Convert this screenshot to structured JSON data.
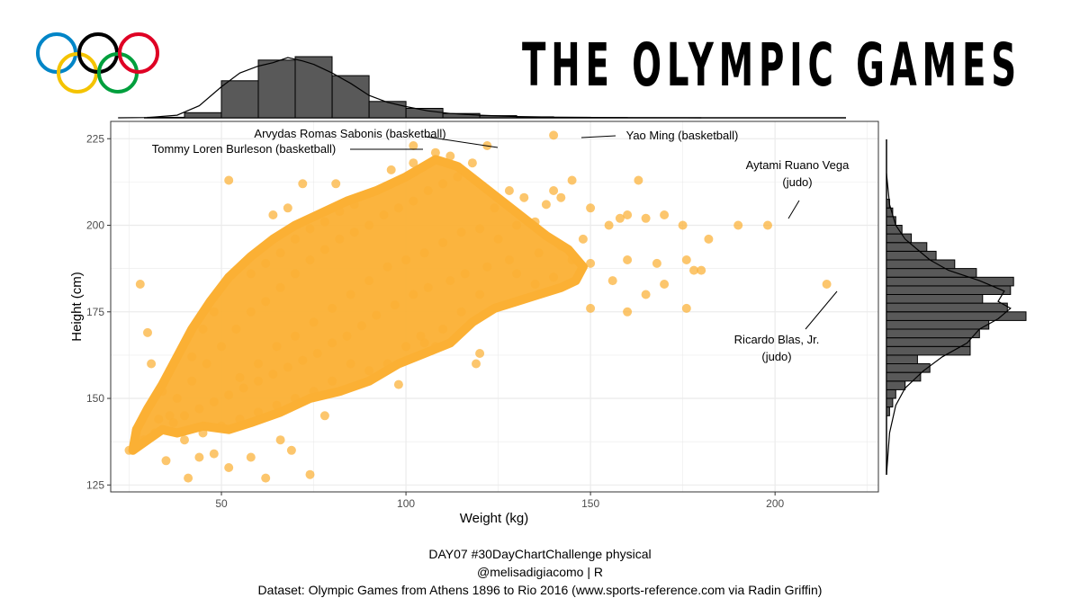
{
  "title": "THE OLYMPIC GAMES",
  "caption": {
    "line1": "DAY07 #30DayChartChallenge physical",
    "line2": "@melisadigiacomo | R",
    "line3": "Dataset: Olympic Games from Athens 1896 to Rio 2016 (www.sports-reference.com via Radin Griffin)"
  },
  "logo": {
    "icon": "olympic-rings-icon",
    "colors": [
      "#0085C7",
      "#F4C300",
      "#000000",
      "#009F3D",
      "#DF0024"
    ]
  },
  "colors": {
    "point": "#FBB034",
    "hist_fill": "#595959",
    "grid": "#EBEBEB",
    "panel_border": "#333333"
  },
  "chart_data": {
    "type": "scatter",
    "xlabel": "Weight (kg)",
    "ylabel": "Height (cm)",
    "xlim": [
      20,
      228
    ],
    "ylim": [
      123,
      230
    ],
    "xticks": [
      50,
      100,
      150,
      200
    ],
    "yticks": [
      125,
      150,
      175,
      200,
      225
    ],
    "grid": true,
    "point_color": "#FBB034",
    "points": [
      [
        28,
        183
      ],
      [
        30,
        169
      ],
      [
        25,
        135
      ],
      [
        27,
        141
      ],
      [
        29,
        138
      ],
      [
        32,
        140
      ],
      [
        31,
        160
      ],
      [
        33,
        144
      ],
      [
        35,
        132
      ],
      [
        36,
        145
      ],
      [
        41,
        127
      ],
      [
        44,
        133
      ],
      [
        48,
        134
      ],
      [
        52,
        130
      ],
      [
        58,
        133
      ],
      [
        62,
        127
      ],
      [
        66,
        138
      ],
      [
        69,
        135
      ],
      [
        74,
        128
      ],
      [
        78,
        145
      ],
      [
        55,
        156
      ],
      [
        60,
        160
      ],
      [
        65,
        165
      ],
      [
        70,
        168
      ],
      [
        75,
        172
      ],
      [
        80,
        176
      ],
      [
        85,
        180
      ],
      [
        90,
        184
      ],
      [
        95,
        188
      ],
      [
        100,
        190
      ],
      [
        105,
        192
      ],
      [
        110,
        195
      ],
      [
        115,
        198
      ],
      [
        120,
        199
      ],
      [
        125,
        196
      ],
      [
        130,
        200
      ],
      [
        135,
        201
      ],
      [
        140,
        210
      ],
      [
        145,
        213
      ],
      [
        150,
        205
      ],
      [
        155,
        200
      ],
      [
        158,
        202
      ],
      [
        160,
        203
      ],
      [
        163,
        213
      ],
      [
        165,
        202
      ],
      [
        170,
        203
      ],
      [
        175,
        200
      ],
      [
        182,
        196
      ],
      [
        190,
        200
      ],
      [
        150,
        189
      ],
      [
        160,
        190
      ],
      [
        168,
        189
      ],
      [
        176,
        190
      ],
      [
        178,
        187
      ],
      [
        180,
        187
      ],
      [
        170,
        183
      ],
      [
        165,
        180
      ],
      [
        150,
        176
      ],
      [
        160,
        175
      ],
      [
        176,
        176
      ],
      [
        156,
        184
      ],
      [
        145,
        190
      ],
      [
        140,
        185
      ],
      [
        135,
        183
      ],
      [
        130,
        186
      ],
      [
        120,
        180
      ],
      [
        115,
        175
      ],
      [
        110,
        170
      ],
      [
        105,
        166
      ],
      [
        100,
        165
      ],
      [
        95,
        160
      ],
      [
        120,
        163
      ],
      [
        119,
        160
      ],
      [
        108,
        165
      ],
      [
        104,
        168
      ],
      [
        98,
        154
      ],
      [
        90,
        158
      ],
      [
        85,
        160
      ],
      [
        80,
        155
      ],
      [
        75,
        152
      ],
      [
        70,
        150
      ],
      [
        65,
        148
      ],
      [
        60,
        146
      ],
      [
        55,
        144
      ],
      [
        50,
        142
      ],
      [
        45,
        140
      ],
      [
        40,
        138
      ],
      [
        38,
        150
      ],
      [
        42,
        155
      ],
      [
        46,
        160
      ],
      [
        50,
        165
      ],
      [
        54,
        170
      ],
      [
        58,
        175
      ],
      [
        62,
        178
      ],
      [
        66,
        182
      ],
      [
        70,
        186
      ],
      [
        74,
        190
      ],
      [
        78,
        193
      ],
      [
        82,
        196
      ],
      [
        86,
        198
      ],
      [
        90,
        200
      ],
      [
        94,
        203
      ],
      [
        98,
        205
      ],
      [
        102,
        207
      ],
      [
        106,
        210
      ],
      [
        110,
        212
      ],
      [
        114,
        214
      ],
      [
        48,
        175
      ],
      [
        45,
        170
      ],
      [
        42,
        162
      ],
      [
        36,
        158
      ],
      [
        34,
        152
      ],
      [
        58,
        186
      ],
      [
        62,
        189
      ],
      [
        66,
        192
      ],
      [
        70,
        196
      ],
      [
        74,
        199
      ],
      [
        78,
        201
      ],
      [
        82,
        204
      ],
      [
        86,
        206
      ],
      [
        64,
        203
      ],
      [
        68,
        205
      ],
      [
        52,
        213
      ],
      [
        72,
        212
      ],
      [
        81,
        212
      ],
      [
        96,
        216
      ],
      [
        102,
        218
      ],
      [
        108,
        221
      ],
      [
        112,
        220
      ],
      [
        118,
        218
      ],
      [
        132,
        208
      ],
      [
        138,
        206
      ],
      [
        142,
        208
      ],
      [
        128,
        210
      ],
      [
        124,
        205
      ],
      [
        148,
        196
      ],
      [
        142,
        194
      ],
      [
        136,
        192
      ],
      [
        128,
        190
      ],
      [
        122,
        188
      ],
      [
        116,
        186
      ],
      [
        112,
        184
      ],
      [
        106,
        182
      ],
      [
        102,
        180
      ],
      [
        97,
        177
      ],
      [
        92,
        174
      ],
      [
        88,
        171
      ],
      [
        84,
        168
      ],
      [
        80,
        166
      ],
      [
        76,
        163
      ],
      [
        72,
        161
      ],
      [
        68,
        159
      ],
      [
        64,
        157
      ],
      [
        60,
        155
      ],
      [
        56,
        153
      ],
      [
        52,
        151
      ],
      [
        48,
        149
      ],
      [
        44,
        147
      ],
      [
        40,
        145
      ],
      [
        37,
        143
      ],
      [
        102,
        223
      ],
      [
        122,
        223
      ],
      [
        140,
        226
      ],
      [
        198,
        200
      ],
      [
        214,
        183
      ]
    ],
    "top_histogram": {
      "axis": "Weight (kg)",
      "bin_width": 10,
      "bins": [
        [
          30,
          0.6
        ],
        [
          40,
          6
        ],
        [
          50,
          43
        ],
        [
          60,
          67
        ],
        [
          70,
          71
        ],
        [
          80,
          49
        ],
        [
          90,
          19
        ],
        [
          100,
          11
        ],
        [
          110,
          5
        ],
        [
          120,
          2.5
        ],
        [
          130,
          1.2
        ],
        [
          140,
          0.6
        ],
        [
          150,
          0.3
        ]
      ]
    },
    "right_histogram": {
      "axis": "Height (cm)",
      "bin_width": 2.5,
      "bins": [
        [
          145,
          1
        ],
        [
          147.5,
          2
        ],
        [
          150,
          3
        ],
        [
          152.5,
          6
        ],
        [
          155,
          11
        ],
        [
          157.5,
          14
        ],
        [
          160,
          10
        ],
        [
          162.5,
          27
        ],
        [
          165,
          27
        ],
        [
          167.5,
          30
        ],
        [
          170,
          33
        ],
        [
          172.5,
          45
        ],
        [
          175,
          39
        ],
        [
          177.5,
          31
        ],
        [
          180,
          40
        ],
        [
          182.5,
          41
        ],
        [
          185,
          29
        ],
        [
          187.5,
          22
        ],
        [
          190,
          16
        ],
        [
          192.5,
          13
        ],
        [
          195,
          8
        ],
        [
          197.5,
          5
        ],
        [
          200,
          3
        ],
        [
          202.5,
          2
        ],
        [
          205,
          1
        ]
      ]
    },
    "annotations": [
      {
        "text": "Arvydas Romas Sabonis (basketball)",
        "x": 122,
        "y": 223
      },
      {
        "text": "Tommy Loren Burleson (basketball)",
        "x": 102,
        "y": 223
      },
      {
        "text": "Yao Ming (basketball)",
        "x": 140,
        "y": 226
      },
      {
        "text": "Aytami Ruano Vega\n(judo)",
        "x": 198,
        "y": 200
      },
      {
        "text": "Ricardo Blas, Jr.\n(judo)",
        "x": 214,
        "y": 183
      }
    ]
  }
}
